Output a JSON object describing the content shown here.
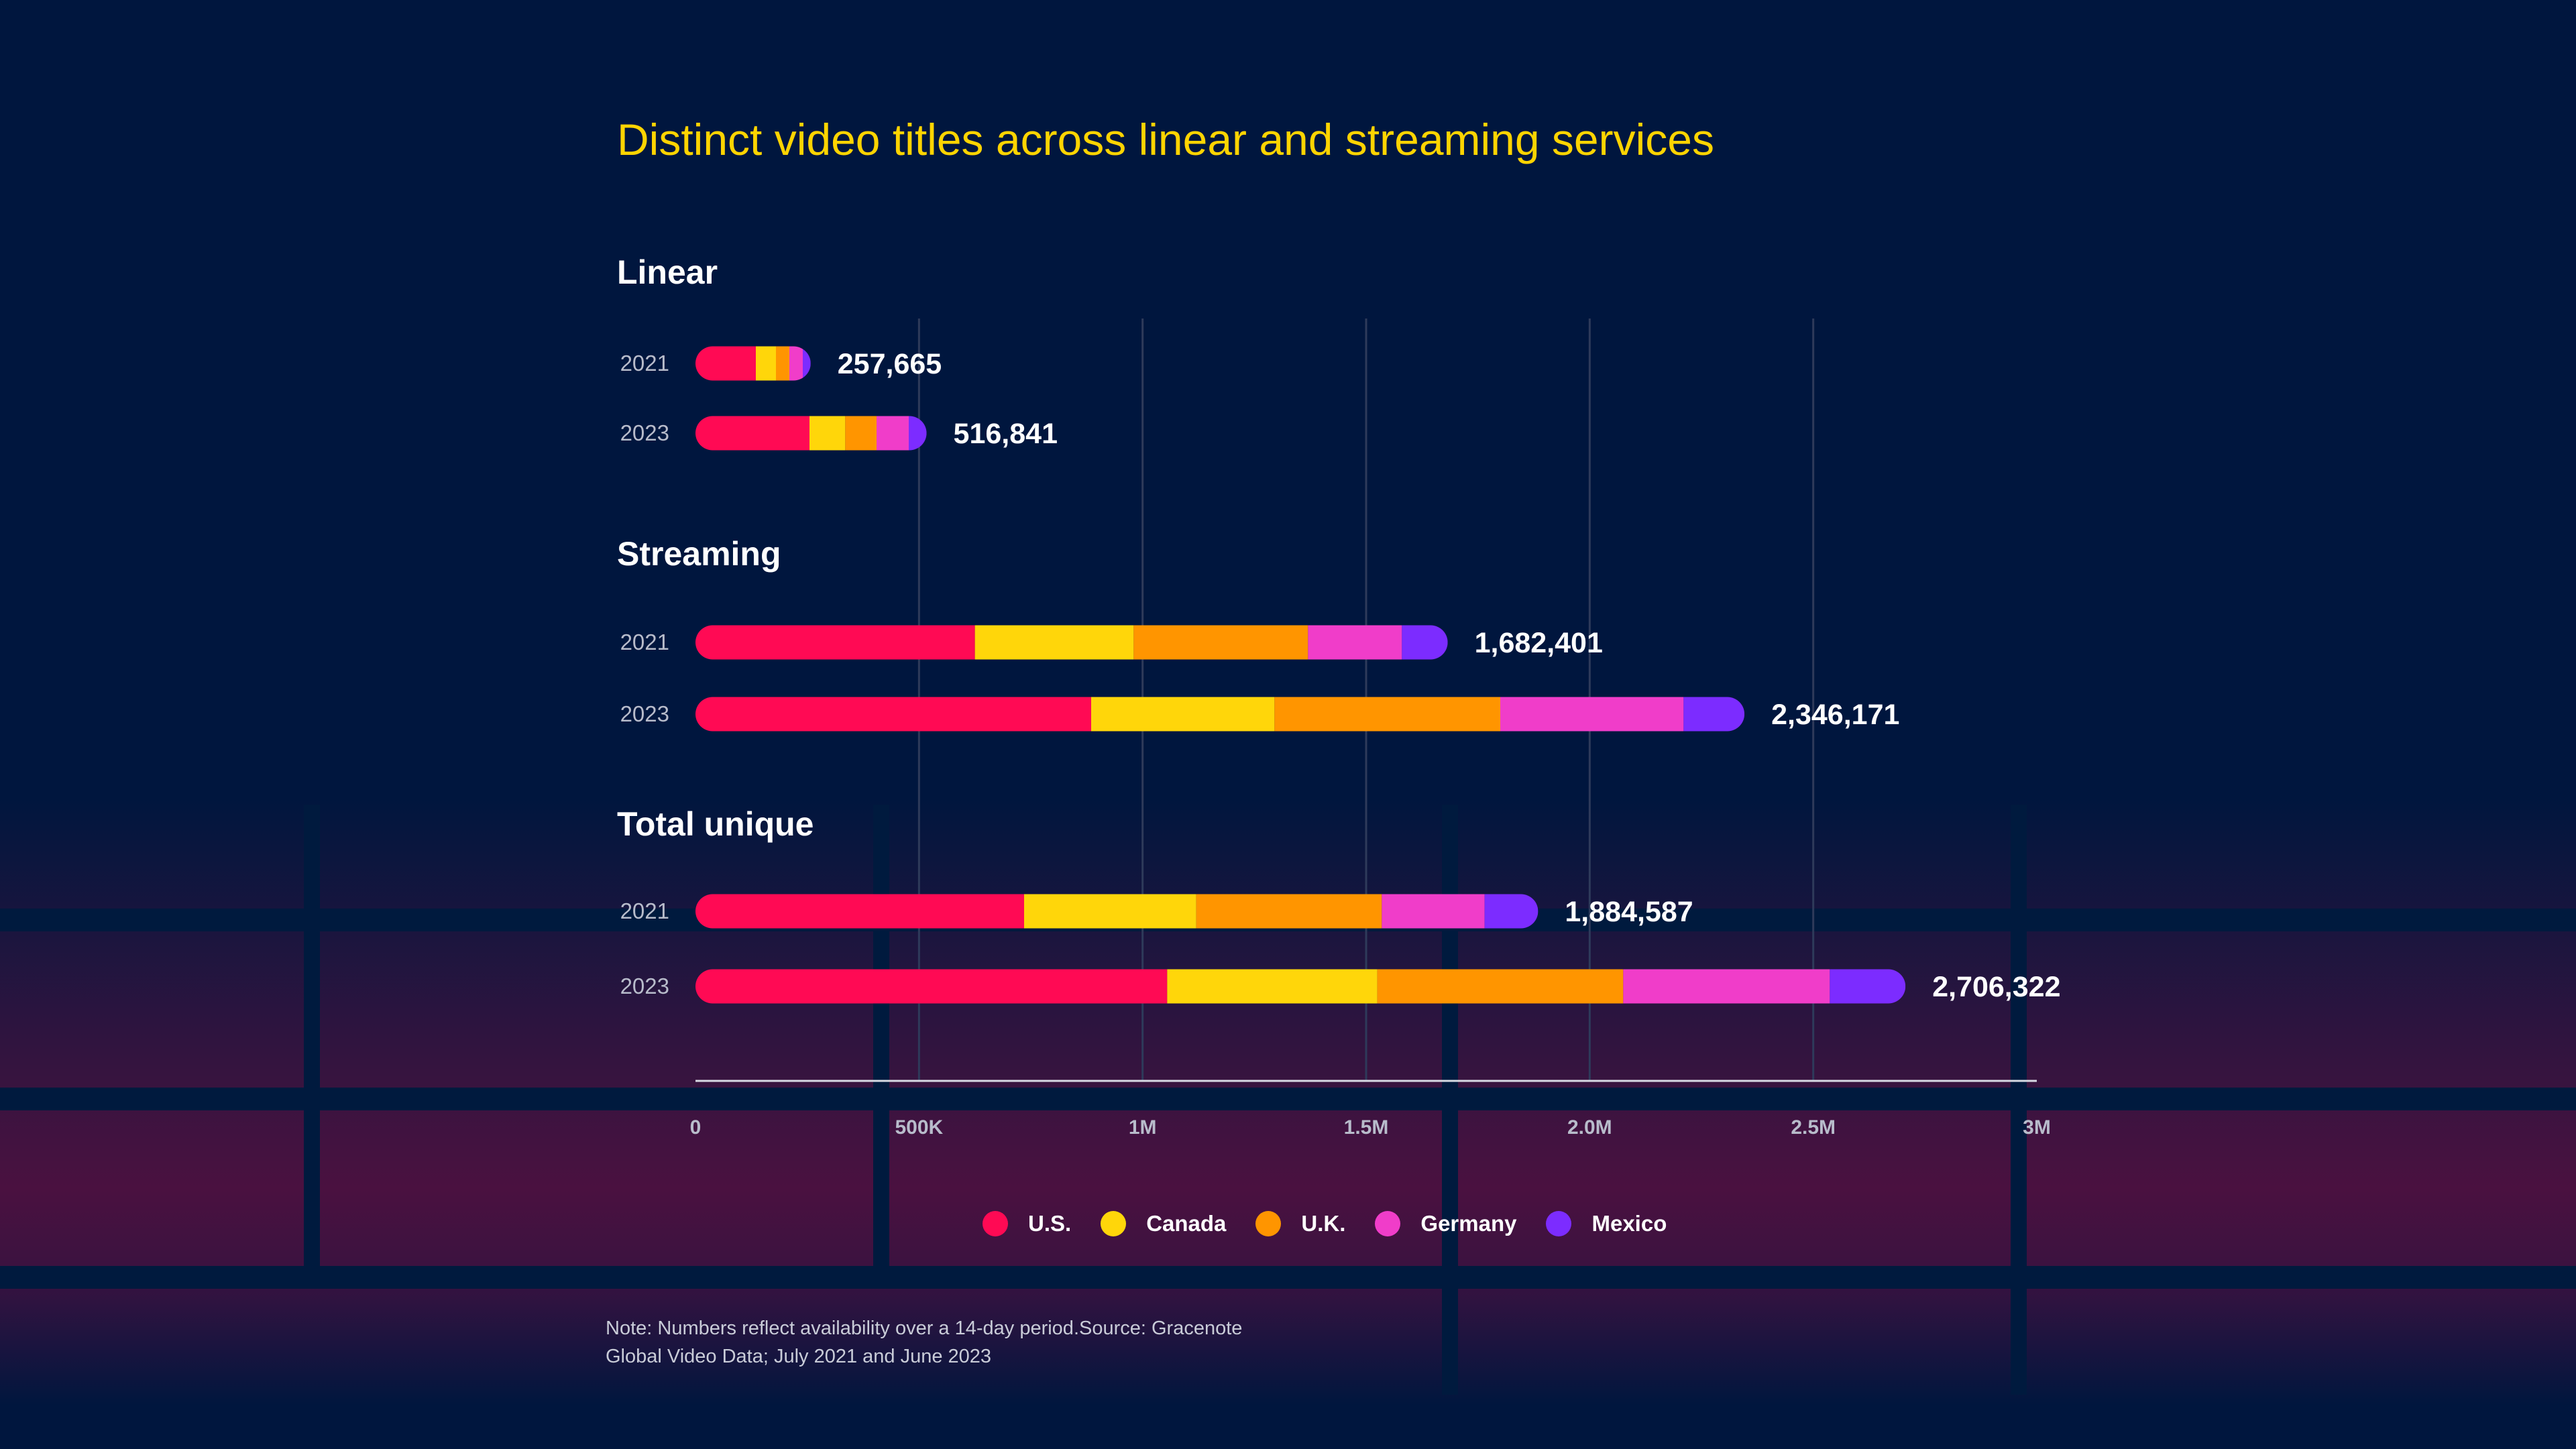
{
  "chart_data": {
    "type": "bar",
    "orientation": "horizontal",
    "stacked": true,
    "title": "Distinct video titles across linear and streaming services",
    "groups": [
      {
        "label": "Linear",
        "rows": [
          {
            "year": "2021",
            "total_label": "257,665",
            "values": [
              135000,
              45000,
              30000,
              30000,
              17665
            ]
          },
          {
            "year": "2023",
            "total_label": "516,841",
            "values": [
              255000,
              80000,
              70000,
              72000,
              39841
            ]
          }
        ]
      },
      {
        "label": "Streaming",
        "rows": [
          {
            "year": "2021",
            "total_label": "1,682,401",
            "values": [
              625000,
              355000,
              390000,
              210000,
              102401
            ]
          },
          {
            "year": "2023",
            "total_label": "2,346,171",
            "values": [
              885000,
              410000,
              505000,
              410000,
              136171
            ]
          }
        ]
      },
      {
        "label": "Total unique",
        "rows": [
          {
            "year": "2021",
            "total_label": "1,884,587",
            "values": [
              735000,
              385000,
              415000,
              230000,
              119587
            ]
          },
          {
            "year": "2023",
            "total_label": "2,706,322",
            "values": [
              1055000,
              470000,
              550000,
              462000,
              169322
            ]
          }
        ]
      }
    ],
    "series": [
      {
        "name": "U.S.",
        "color": "#ff0a54"
      },
      {
        "name": "Canada",
        "color": "#ffd60a"
      },
      {
        "name": "U.K.",
        "color": "#ff9500"
      },
      {
        "name": "Germany",
        "color": "#f03dc9"
      },
      {
        "name": "Mexico",
        "color": "#7c2cff"
      }
    ],
    "xlim": [
      0,
      3000000
    ],
    "xticks": [
      {
        "value": 0,
        "label": "0"
      },
      {
        "value": 500000,
        "label": "500K"
      },
      {
        "value": 1000000,
        "label": "1M"
      },
      {
        "value": 1500000,
        "label": "1.5M"
      },
      {
        "value": 2000000,
        "label": "2.0M"
      },
      {
        "value": 2500000,
        "label": "2.5M"
      },
      {
        "value": 3000000,
        "label": "3M"
      }
    ],
    "grid": true,
    "legend_position": "bottom-center"
  },
  "note": "Note: Numbers reflect availability over a 14-day period.Source: Gracenote Global Video Data; July 2021 and June 2023",
  "colors": {
    "background": "#00163e",
    "title": "#ffd400",
    "text": "#ffffff",
    "muted_text": "#b8bccb",
    "gridline": "#2e3a5a"
  }
}
